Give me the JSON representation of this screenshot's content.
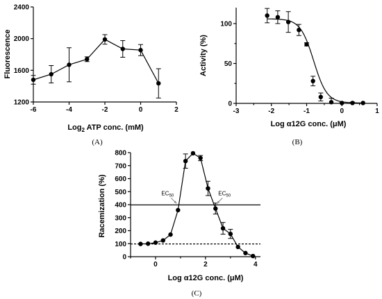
{
  "chart_data": [
    {
      "panel": "(A)",
      "type": "line",
      "xlabel_main": "Log",
      "xlabel_sub": "2",
      "xlabel_rest": " ATP conc. (mM)",
      "ylabel": "Fluorescence",
      "xlim": [
        -6,
        2
      ],
      "ylim": [
        1200,
        2400
      ],
      "xticks": [
        "-6",
        "-4",
        "-2",
        "0",
        "2"
      ],
      "xtick_values": [
        -6,
        -4,
        -2,
        0,
        2
      ],
      "yticks": [
        "1200",
        "1600",
        "2000",
        "2400"
      ],
      "ytick_values": [
        1200,
        1600,
        2000,
        2400
      ],
      "x": [
        -6,
        -5,
        -4,
        -3,
        -2,
        -1,
        0,
        1
      ],
      "y": [
        1480,
        1550,
        1670,
        1740,
        1990,
        1870,
        1855,
        1435
      ],
      "err": [
        55,
        110,
        215,
        30,
        60,
        105,
        70,
        185
      ]
    },
    {
      "panel": "(B)",
      "type": "scatter",
      "xlabel": "Log α12G conc. (μM)",
      "ylabel": "Activity (%)",
      "xlim": [
        -3,
        1
      ],
      "ylim": [
        0,
        120
      ],
      "xticks": [
        "-3",
        "-2",
        "-1",
        "0",
        "1"
      ],
      "xtick_values": [
        -3,
        -2,
        -1,
        0,
        1
      ],
      "yticks": [
        "0",
        "50",
        "100"
      ],
      "ytick_values": [
        0,
        50,
        100
      ],
      "x": [
        -2.12,
        -1.82,
        -1.52,
        -1.22,
        -1.0,
        -0.82,
        -0.6,
        -0.3,
        0.0,
        0.3,
        0.6
      ],
      "y": [
        110,
        108,
        102,
        92,
        74,
        28,
        8,
        1.5,
        0.5,
        0.5,
        0.5
      ],
      "err": [
        9,
        8,
        13,
        7,
        2,
        6,
        5,
        5,
        1,
        1,
        0
      ],
      "fit": {
        "top": 106,
        "bottom": 0.5,
        "logEC50": -0.8,
        "hill": -2.3
      }
    },
    {
      "panel": "(C)",
      "type": "line",
      "xlabel": "Log α12G conc. (μM)",
      "ylabel": "Racemization (%)",
      "xlim": [
        -1,
        4.2
      ],
      "ylim": [
        0,
        800
      ],
      "xticks": [
        "0",
        "2",
        "4"
      ],
      "xtick_values": [
        0,
        2,
        4
      ],
      "yticks": [
        "0",
        "100",
        "200",
        "300",
        "400",
        "500",
        "600",
        "700",
        "800"
      ],
      "ytick_values": [
        0,
        100,
        200,
        300,
        400,
        500,
        600,
        700,
        800
      ],
      "x": [
        -0.6,
        -0.3,
        0.0,
        0.3,
        0.6,
        0.9,
        1.2,
        1.5,
        1.8,
        2.1,
        2.4,
        2.7,
        3.0,
        3.3,
        3.6,
        3.9
      ],
      "y": [
        98,
        100,
        108,
        125,
        170,
        358,
        735,
        795,
        758,
        525,
        370,
        218,
        175,
        75,
        28,
        5
      ],
      "err": [
        0,
        0,
        0,
        0,
        0,
        0,
        55,
        0,
        20,
        55,
        42,
        45,
        35,
        0,
        0,
        0
      ],
      "hline_solid": 398,
      "hline_dashed": 98,
      "annotations": [
        {
          "text": "EC",
          "sub": "50",
          "x": 0.9,
          "y": 398
        },
        {
          "text": "EC",
          "sub": "50",
          "x": 2.4,
          "y": 398
        }
      ]
    }
  ]
}
